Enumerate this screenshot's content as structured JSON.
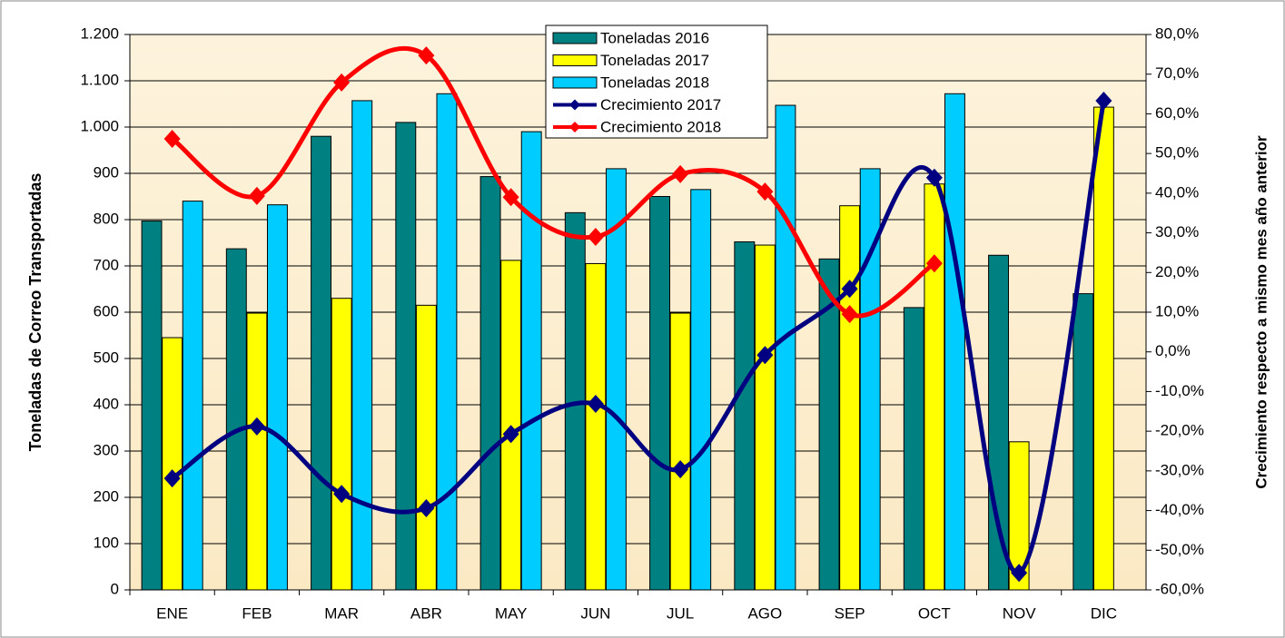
{
  "chart_data": {
    "type": "bar-line",
    "y_label": "Toneladas de Correo  Transportadas",
    "y2_label": "Crecimiento respecto a mismo mes año anterior",
    "categories": [
      "ENE",
      "FEB",
      "MAR",
      "ABR",
      "MAY",
      "JUN",
      "JUL",
      "AGO",
      "SEP",
      "OCT",
      "NOV",
      "DIC"
    ],
    "series": [
      {
        "name": "Toneladas 2016",
        "type": "bar",
        "color": "#008080",
        "values": [
          797,
          737,
          980,
          1010,
          893,
          815,
          850,
          752,
          715,
          610,
          723,
          640
        ]
      },
      {
        "name": "Toneladas 2017",
        "type": "bar",
        "color": "#ffff00",
        "values": [
          545,
          598,
          630,
          615,
          712,
          705,
          598,
          745,
          830,
          877,
          320,
          1043
        ]
      },
      {
        "name": "Toneladas 2018",
        "type": "bar",
        "color": "#00ccff",
        "values": [
          840,
          832,
          1057,
          1072,
          990,
          910,
          865,
          1047,
          910,
          1072,
          null,
          null
        ]
      },
      {
        "name": "Crecimiento 2017",
        "type": "line",
        "axis": "y2",
        "color": "#000080",
        "values": [
          -31.9,
          -18.8,
          -35.8,
          -39.4,
          -20.7,
          -13.1,
          -29.6,
          -0.8,
          15.9,
          43.9,
          -55.7,
          63.3
        ]
      },
      {
        "name": "Crecimiento 2018",
        "type": "line",
        "axis": "y2",
        "color": "#ff0000",
        "values": [
          53.7,
          39.3,
          67.9,
          74.7,
          39.0,
          29.0,
          44.8,
          40.4,
          9.5,
          22.3,
          null,
          null
        ]
      }
    ],
    "ylim": [
      0,
      1200
    ],
    "yticks": [
      0,
      100,
      200,
      300,
      400,
      500,
      600,
      700,
      800,
      900,
      {
        "value": 1000,
        "label": "1.000"
      },
      {
        "value": 1100,
        "label": "1.100"
      },
      {
        "value": 1200,
        "label": "1.200"
      }
    ],
    "y2lim": [
      -60,
      80
    ],
    "y2ticks": [
      {
        "value": -60,
        "label": "-60,0%"
      },
      {
        "value": -50,
        "label": "-50,0%"
      },
      {
        "value": -40,
        "label": "-40,0%"
      },
      {
        "value": -30,
        "label": "-30,0%"
      },
      {
        "value": -20,
        "label": "-20,0%"
      },
      {
        "value": -10,
        "label": "-10,0%"
      },
      {
        "value": 0,
        "label": "0,0%"
      },
      {
        "value": 10,
        "label": "10,0%"
      },
      {
        "value": 20,
        "label": "20,0%"
      },
      {
        "value": 30,
        "label": "30,0%"
      },
      {
        "value": 40,
        "label": "40,0%"
      },
      {
        "value": 50,
        "label": "50,0%"
      },
      {
        "value": 60,
        "label": "60,0%"
      },
      {
        "value": 70,
        "label": "70,0%"
      },
      {
        "value": 80,
        "label": "80,0%"
      }
    ],
    "grid": true,
    "legend_position": "top"
  }
}
